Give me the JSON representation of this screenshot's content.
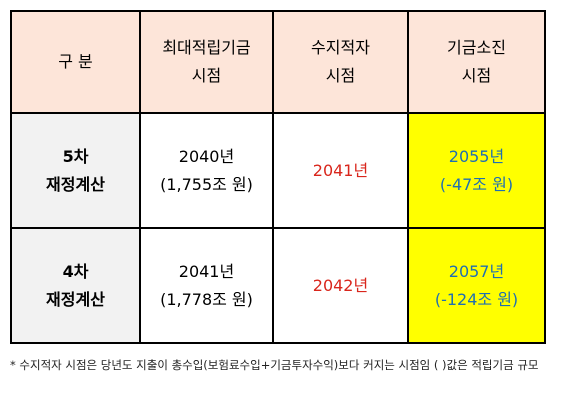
{
  "table": {
    "headers": [
      [
        "구 분"
      ],
      [
        "최대적립기금",
        "시점"
      ],
      [
        "수지적자",
        "시점"
      ],
      [
        "기금소진",
        "시점"
      ]
    ],
    "rows": [
      {
        "label": [
          "5차",
          "재정계산"
        ],
        "max_fund": [
          "2040년",
          "(1,755조 원)"
        ],
        "deficit": [
          "2041년"
        ],
        "depletion": [
          "2055년",
          "(-47조 원)"
        ]
      },
      {
        "label": [
          "4차",
          "재정계산"
        ],
        "max_fund": [
          "2041년",
          "(1,778조 원)"
        ],
        "deficit": [
          "2042년"
        ],
        "depletion": [
          "2057년",
          "(-124조 원)"
        ]
      }
    ]
  },
  "footnote": "* 수지적자 시점은 당년도 지출이 총수입(보험료수입+기금투자수익)보다 커지는 시점임  ( )값은 적립기금 규모",
  "colors": {
    "header_bg": "#fde5d9",
    "label_bg": "#f2f2f2",
    "deficit_text": "#d9261c",
    "depletion_text": "#1f6fb2",
    "depletion_bg": "#ffff00"
  }
}
